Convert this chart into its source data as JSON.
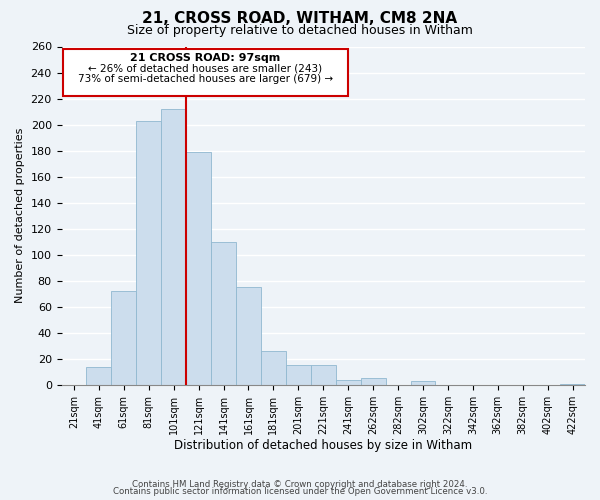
{
  "title": "21, CROSS ROAD, WITHAM, CM8 2NA",
  "subtitle": "Size of property relative to detached houses in Witham",
  "xlabel": "Distribution of detached houses by size in Witham",
  "ylabel": "Number of detached properties",
  "bar_labels": [
    "21sqm",
    "41sqm",
    "61sqm",
    "81sqm",
    "101sqm",
    "121sqm",
    "141sqm",
    "161sqm",
    "181sqm",
    "201sqm",
    "221sqm",
    "241sqm",
    "262sqm",
    "282sqm",
    "302sqm",
    "322sqm",
    "342sqm",
    "362sqm",
    "382sqm",
    "402sqm",
    "422sqm"
  ],
  "bar_values": [
    0,
    14,
    72,
    203,
    212,
    179,
    110,
    75,
    26,
    15,
    15,
    4,
    5,
    0,
    3,
    0,
    0,
    0,
    0,
    0,
    1
  ],
  "bar_color": "#ccdded",
  "bar_edge_color": "#90b8d0",
  "highlight_line_color": "#cc0000",
  "annotation_title": "21 CROSS ROAD: 97sqm",
  "annotation_line1": "← 26% of detached houses are smaller (243)",
  "annotation_line2": "73% of semi-detached houses are larger (679) →",
  "annotation_box_color": "#ffffff",
  "annotation_border_color": "#cc0000",
  "ylim_max": 260,
  "ytick_step": 20,
  "footnote1": "Contains HM Land Registry data © Crown copyright and database right 2024.",
  "footnote2": "Contains public sector information licensed under the Open Government Licence v3.0.",
  "bg_color": "#eef3f8",
  "grid_color": "#ffffff"
}
